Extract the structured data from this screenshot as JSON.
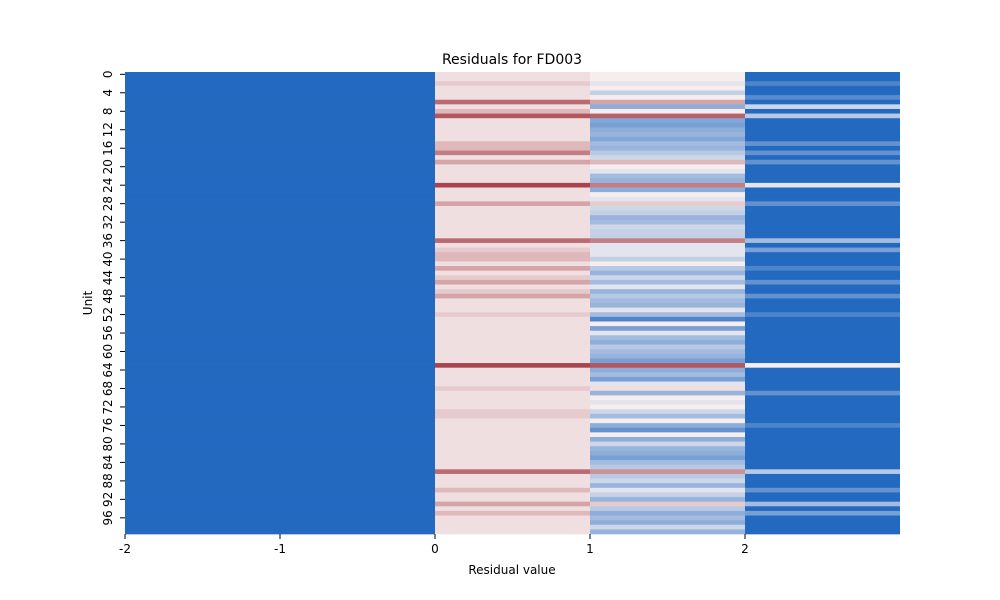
{
  "chart_data": {
    "type": "heatmap",
    "title": "Residuals for FD003",
    "xlabel": "Residual value",
    "ylabel": "Unit",
    "x_ticks": [
      "-2",
      "-1",
      "0",
      "1",
      "2"
    ],
    "y_ticks": [
      "0",
      "4",
      "8",
      "12",
      "16",
      "20",
      "24",
      "28",
      "32",
      "36",
      "40",
      "44",
      "48",
      "52",
      "56",
      "60",
      "64",
      "68",
      "72",
      "76",
      "80",
      "84",
      "88",
      "92",
      "96"
    ],
    "units": 100,
    "columns": [
      {
        "x_start": -2,
        "x_end": 0
      },
      {
        "x_start": 0,
        "x_end": 1
      },
      {
        "x_start": 1,
        "x_end": 2
      },
      {
        "x_start": 2,
        "x_end": 3
      }
    ],
    "color_scale": {
      "min": -1,
      "max": 1,
      "low": "#2369c0",
      "mid": "#f8f2f2",
      "high": "#a0303c"
    },
    "values": [
      [
        -1,
        0.1,
        0.02,
        -1
      ],
      [
        -1,
        0.1,
        0.02,
        -1
      ],
      [
        -1,
        0.2,
        -0.1,
        -0.8
      ],
      [
        -1,
        0.1,
        0.02,
        -1
      ],
      [
        -1,
        0.1,
        -0.25,
        -1
      ],
      [
        -1,
        0.1,
        0.02,
        -0.75
      ],
      [
        -1,
        0.7,
        0.4,
        -1
      ],
      [
        -1,
        0.1,
        -0.5,
        -0.2
      ],
      [
        -1,
        0.3,
        0.02,
        -1
      ],
      [
        -1,
        0.8,
        0.75,
        -0.3
      ],
      [
        -1,
        0.1,
        -0.55,
        -1
      ],
      [
        -1,
        0.1,
        -0.6,
        -1
      ],
      [
        -1,
        0.1,
        -0.5,
        -1
      ],
      [
        -1,
        0.1,
        -0.45,
        -1
      ],
      [
        -1,
        0.1,
        -0.55,
        -1
      ],
      [
        -1,
        0.3,
        -0.4,
        -0.7
      ],
      [
        -1,
        0.3,
        -0.45,
        -1
      ],
      [
        -1,
        0.6,
        -0.3,
        -0.7
      ],
      [
        -1,
        0.1,
        -0.2,
        -1
      ],
      [
        -1,
        0.4,
        0.3,
        -0.7
      ],
      [
        -1,
        0.1,
        0.02,
        -1
      ],
      [
        -1,
        0.1,
        -0.1,
        -1
      ],
      [
        -1,
        0.1,
        -0.4,
        -1
      ],
      [
        -1,
        0.1,
        -0.45,
        -1
      ],
      [
        -1,
        0.9,
        0.6,
        -0.1
      ],
      [
        -1,
        0.1,
        -0.5,
        -1
      ],
      [
        -1,
        0.1,
        0.02,
        -1
      ],
      [
        -1,
        0.1,
        -0.1,
        -1
      ],
      [
        -1,
        0.4,
        0.2,
        -0.7
      ],
      [
        -1,
        0.1,
        -0.2,
        -1
      ],
      [
        -1,
        0.1,
        -0.25,
        -1
      ],
      [
        -1,
        0.1,
        -0.45,
        -1
      ],
      [
        -1,
        0.1,
        -0.4,
        -1
      ],
      [
        -1,
        0.1,
        -0.2,
        -1
      ],
      [
        -1,
        0.1,
        -0.25,
        -1
      ],
      [
        -1,
        0.1,
        -0.25,
        -1
      ],
      [
        -1,
        0.7,
        0.6,
        -0.4
      ],
      [
        -1,
        0.1,
        -0.1,
        -1
      ],
      [
        -1,
        0.2,
        -0.1,
        -0.6
      ],
      [
        -1,
        0.3,
        -0.1,
        -1
      ],
      [
        -1,
        0.3,
        -0.25,
        -1
      ],
      [
        -1,
        0.1,
        0.02,
        -1
      ],
      [
        -1,
        0.4,
        -0.3,
        -0.8
      ],
      [
        -1,
        0.1,
        -0.45,
        -1
      ],
      [
        -1,
        0.2,
        -0.2,
        -1
      ],
      [
        -1,
        0.4,
        -0.4,
        -0.7
      ],
      [
        -1,
        0.1,
        -0.1,
        -1
      ],
      [
        -1,
        0.2,
        -0.45,
        -1
      ],
      [
        -1,
        0.4,
        -0.3,
        -0.7
      ],
      [
        -1,
        0.1,
        -0.4,
        -1
      ],
      [
        -1,
        0.1,
        -0.45,
        -1
      ],
      [
        -1,
        0.1,
        -0.1,
        -1
      ],
      [
        -1,
        0.2,
        -0.4,
        -0.8
      ],
      [
        -1,
        0.1,
        -0.8,
        -1
      ],
      [
        -1,
        0.1,
        0.02,
        -1
      ],
      [
        -1,
        0.1,
        -0.6,
        -1
      ],
      [
        -1,
        0.1,
        -0.1,
        -1
      ],
      [
        -1,
        0.1,
        -0.4,
        -1
      ],
      [
        -1,
        0.1,
        -0.5,
        -1
      ],
      [
        -1,
        0.1,
        -0.3,
        -1
      ],
      [
        -1,
        0.1,
        -0.4,
        -1
      ],
      [
        -1,
        0.1,
        -0.45,
        -1
      ],
      [
        -1,
        0.1,
        -0.6,
        -1
      ],
      [
        -1,
        0.9,
        0.8,
        0.02
      ],
      [
        -1,
        0.1,
        -0.5,
        -1
      ],
      [
        -1,
        0.1,
        -0.4,
        -1
      ],
      [
        -1,
        0.1,
        -0.6,
        -1
      ],
      [
        -1,
        0.1,
        -0.1,
        -1
      ],
      [
        -1,
        0.2,
        0.1,
        -1
      ],
      [
        -1,
        0.1,
        -0.45,
        -0.7
      ],
      [
        -1,
        0.1,
        0.02,
        -1
      ],
      [
        -1,
        0.1,
        -0.1,
        -1
      ],
      [
        -1,
        0.1,
        0.02,
        -1
      ],
      [
        -1,
        0.2,
        -0.2,
        -1
      ],
      [
        -1,
        0.2,
        -0.4,
        -1
      ],
      [
        -1,
        0.1,
        0.02,
        -1
      ],
      [
        -1,
        0.1,
        -0.5,
        -0.8
      ],
      [
        -1,
        0.1,
        -0.7,
        -1
      ],
      [
        -1,
        0.1,
        0.02,
        -1
      ],
      [
        -1,
        0.1,
        -0.5,
        -1
      ],
      [
        -1,
        0.1,
        -0.2,
        -1
      ],
      [
        -1,
        0.1,
        -0.45,
        -1
      ],
      [
        -1,
        0.1,
        -0.5,
        -1
      ],
      [
        -1,
        0.1,
        -0.6,
        -1
      ],
      [
        -1,
        0.1,
        -0.4,
        -1
      ],
      [
        -1,
        0.1,
        -0.3,
        -1
      ],
      [
        -1,
        0.7,
        0.5,
        -0.3
      ],
      [
        -1,
        0.1,
        -0.3,
        -1
      ],
      [
        -1,
        0.1,
        -0.2,
        -1
      ],
      [
        -1,
        0.1,
        -0.45,
        -1
      ],
      [
        -1,
        0.3,
        -0.1,
        -0.7
      ],
      [
        -1,
        0.1,
        -0.25,
        -1
      ],
      [
        -1,
        0.1,
        -0.45,
        -1
      ],
      [
        -1,
        0.4,
        0.2,
        -0.4
      ],
      [
        -1,
        0.1,
        -0.3,
        -1
      ],
      [
        -1,
        0.3,
        -0.5,
        -0.6
      ],
      [
        -1,
        0.1,
        -0.4,
        -1
      ],
      [
        -1,
        0.1,
        -0.5,
        -1
      ],
      [
        -1,
        0.1,
        -0.2,
        -1
      ],
      [
        -1,
        0.1,
        -0.45,
        -1
      ]
    ]
  }
}
